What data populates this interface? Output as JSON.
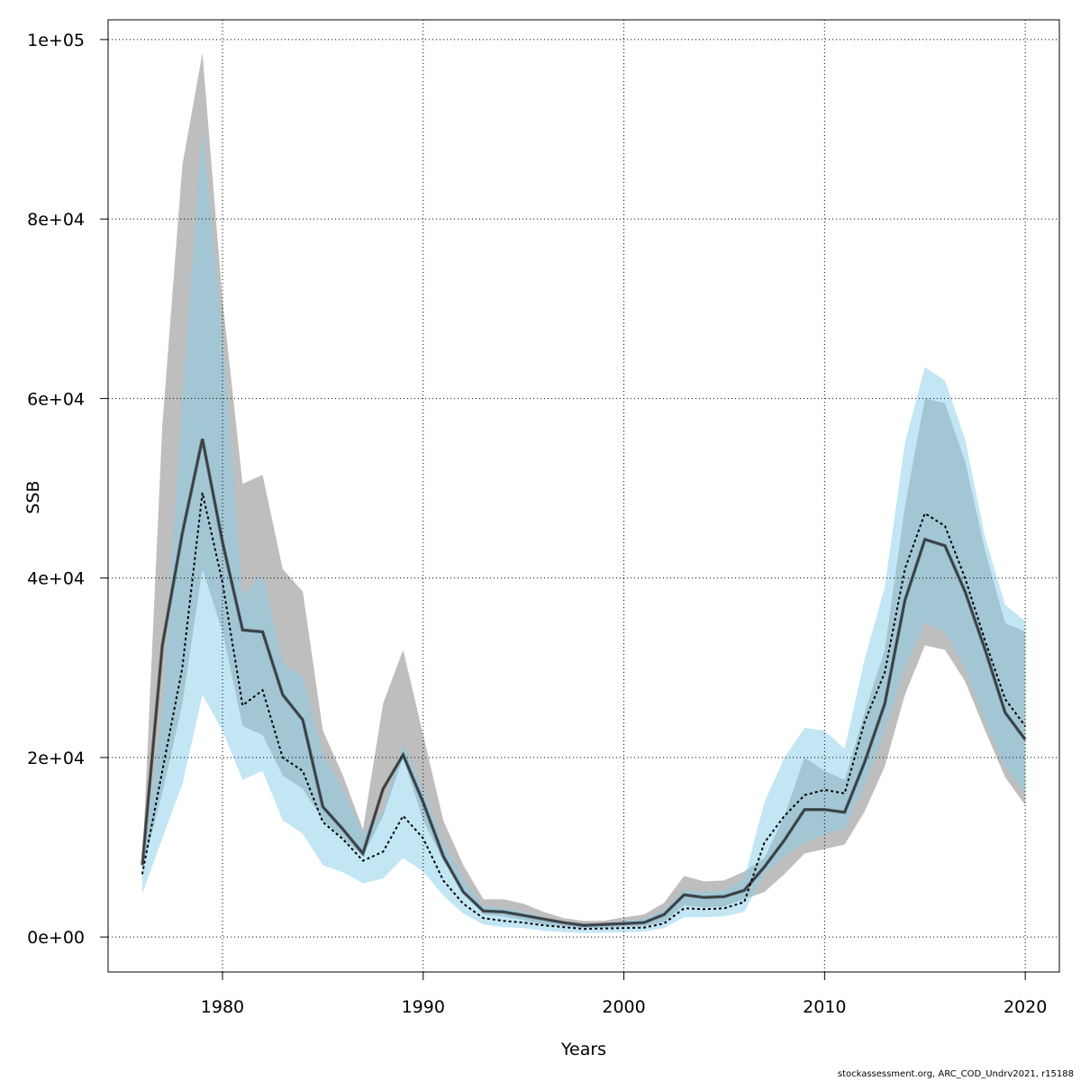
{
  "chart_data": {
    "type": "area",
    "xlabel": "Years",
    "ylabel": "SSB",
    "xlim": [
      1974.3,
      2021.7
    ],
    "ylim": [
      -3900,
      102200
    ],
    "x_ticks": [
      1980,
      1990,
      2000,
      2010,
      2020
    ],
    "y_ticks": [
      0,
      20000,
      40000,
      60000,
      80000,
      100000
    ],
    "y_tick_labels": [
      "0e+00",
      "2e+04",
      "4e+04",
      "6e+04",
      "8e+04",
      "1e+05"
    ],
    "grid": true,
    "colors": {
      "grey_band": "#bebebe",
      "blue_band": "#87ceeb",
      "line": "#000000"
    },
    "years": [
      1976,
      1977,
      1978,
      1979,
      1980,
      1981,
      1982,
      1983,
      1984,
      1985,
      1986,
      1987,
      1988,
      1989,
      1990,
      1991,
      1992,
      1993,
      1994,
      1995,
      1996,
      1997,
      1998,
      1999,
      2000,
      2001,
      2002,
      2003,
      2004,
      2005,
      2006,
      2007,
      2008,
      2009,
      2010,
      2011,
      2012,
      2013,
      2014,
      2015,
      2016,
      2017,
      2018,
      2019,
      2020
    ],
    "series": [
      {
        "role": "grey-band-lower",
        "values": [
          7500,
          16000,
          26000,
          41000,
          34000,
          23500,
          22500,
          18000,
          16500,
          13000,
          11000,
          9000,
          13500,
          20000,
          13000,
          8500,
          5000,
          2500,
          2300,
          1900,
          1400,
          1200,
          1000,
          1050,
          1150,
          1200,
          1700,
          3500,
          3300,
          3400,
          4200,
          5000,
          7000,
          9300,
          9800,
          10300,
          14000,
          19000,
          27000,
          32500,
          32000,
          28500,
          23000,
          17800,
          14700
        ]
      },
      {
        "role": "grey-band-upper",
        "values": [
          8000,
          57000,
          86000,
          98500,
          71000,
          50500,
          51500,
          41000,
          38500,
          23000,
          18000,
          12000,
          26000,
          32000,
          22500,
          13000,
          8000,
          4200,
          4200,
          3700,
          2800,
          2100,
          1800,
          1800,
          2200,
          2500,
          3800,
          6800,
          6200,
          6300,
          7300,
          8800,
          13500,
          20000,
          18500,
          17500,
          25000,
          32000,
          48000,
          60000,
          59500,
          53000,
          43000,
          35000,
          34000
        ]
      },
      {
        "role": "blue-band-lower",
        "values": [
          4800,
          11000,
          17000,
          27000,
          23000,
          17500,
          18500,
          13000,
          11500,
          8000,
          7200,
          6000,
          6500,
          8800,
          7300,
          4600,
          2600,
          1400,
          1100,
          1000,
          700,
          550,
          450,
          500,
          550,
          600,
          1000,
          2200,
          2200,
          2300,
          2800,
          7000,
          9000,
          10500,
          11500,
          12000,
          17000,
          23000,
          30000,
          35000,
          34000,
          30000,
          24000,
          19000,
          16000
        ]
      },
      {
        "role": "blue-band-upper",
        "values": [
          8500,
          25000,
          60000,
          90000,
          67000,
          38000,
          40500,
          30500,
          29000,
          20500,
          16500,
          11500,
          14000,
          21500,
          16500,
          10500,
          6500,
          3400,
          3200,
          2800,
          2200,
          1700,
          1500,
          1500,
          1800,
          2000,
          3000,
          5200,
          5000,
          5200,
          6500,
          15000,
          20000,
          23300,
          23000,
          21000,
          31000,
          39000,
          55000,
          63500,
          62000,
          55500,
          44500,
          37000,
          35200
        ]
      },
      {
        "name": "",
        "role": "solid-estimate",
        "values": [
          8000,
          32500,
          45000,
          55500,
          44000,
          34200,
          34000,
          27000,
          24200,
          14500,
          12000,
          9300,
          16500,
          20300,
          15000,
          9000,
          5000,
          2900,
          2800,
          2400,
          2000,
          1600,
          1300,
          1400,
          1500,
          1600,
          2500,
          4700,
          4400,
          4500,
          5200,
          7800,
          10800,
          14200,
          14200,
          13900,
          19500,
          26000,
          37500,
          44300,
          43600,
          38500,
          32000,
          25000,
          22000
        ]
      },
      {
        "name": "",
        "role": "dotted-estimate",
        "values": [
          7000,
          18500,
          30000,
          49500,
          39500,
          25800,
          27500,
          20000,
          18500,
          12800,
          10900,
          8500,
          9500,
          13500,
          11000,
          6300,
          3700,
          2100,
          1800,
          1600,
          1300,
          1100,
          900,
          950,
          1000,
          1050,
          1500,
          3200,
          3100,
          3200,
          3900,
          10500,
          13500,
          15800,
          16400,
          16000,
          24000,
          29500,
          41000,
          47200,
          45800,
          40000,
          33000,
          26500,
          23500
        ]
      }
    ]
  },
  "footer": {
    "text": "stockassessment.org, ARC_COD_Undrv2021, r15188"
  }
}
